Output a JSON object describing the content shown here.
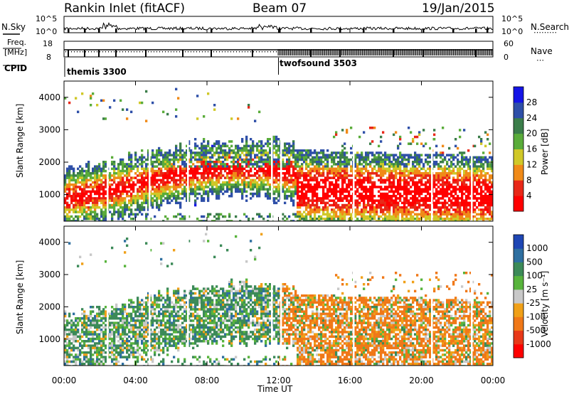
{
  "header": {
    "station": "Rankin Inlet (fitACF)",
    "beam": "Beam 07",
    "date": "19/Jan/2015"
  },
  "top_panels": {
    "nsky_label": "N.Sky",
    "nsearch_label": "N.Search",
    "noise_ticks": [
      "10^5",
      "10^0"
    ],
    "freq_label_1": "Freq.",
    "freq_label_2": "[MHz]",
    "freq_ticks": [
      "18",
      "8"
    ],
    "nave_label": "Nave",
    "nave_ticks": [
      "60",
      "0"
    ],
    "cpid_label": "CPID",
    "cpid_modes": [
      {
        "name": "themis",
        "id": "3300",
        "start_hour": 0
      },
      {
        "name": "twofsound",
        "id": "3503",
        "start_hour": 12.0
      }
    ]
  },
  "chart_data": [
    {
      "type": "heatmap",
      "name": "power",
      "xlabel": "",
      "ylabel": "Slant Range [km]",
      "x_range_hours": [
        0,
        24
      ],
      "y_range_km": [
        180,
        4500
      ],
      "yticks": [
        1000,
        2000,
        3000,
        4000
      ],
      "colorbar_label": "Power [dB]",
      "colorbar_ticks": [
        "4",
        "8",
        "12",
        "16",
        "20",
        "24",
        "28"
      ],
      "colors": [
        "#1414e6",
        "#2e4fa8",
        "#3b7d4a",
        "#5aac3a",
        "#d0c828",
        "#f08a18",
        "#e82818",
        "#ff0000"
      ]
    },
    {
      "type": "heatmap",
      "name": "velocity",
      "xlabel": "Time UT",
      "ylabel": "Slant Range [km]",
      "x_range_hours": [
        0,
        24
      ],
      "y_range_km": [
        180,
        4500
      ],
      "yticks": [
        1000,
        2000,
        3000,
        4000
      ],
      "xticks": [
        "00:00",
        "04:00",
        "08:00",
        "12:00",
        "16:00",
        "20:00",
        "00:00"
      ],
      "colorbar_label": "Velocity [m s⁻¹]",
      "colorbar_ticks": [
        "1000",
        "500",
        "100",
        "25",
        "-25",
        "-100",
        "-500",
        "-1000"
      ],
      "colors": [
        "#1e46b4",
        "#2e6fa0",
        "#3c8a58",
        "#58b43c",
        "#c8c8c8",
        "#f0a018",
        "#f07818",
        "#e83818",
        "#ff0000"
      ]
    }
  ]
}
